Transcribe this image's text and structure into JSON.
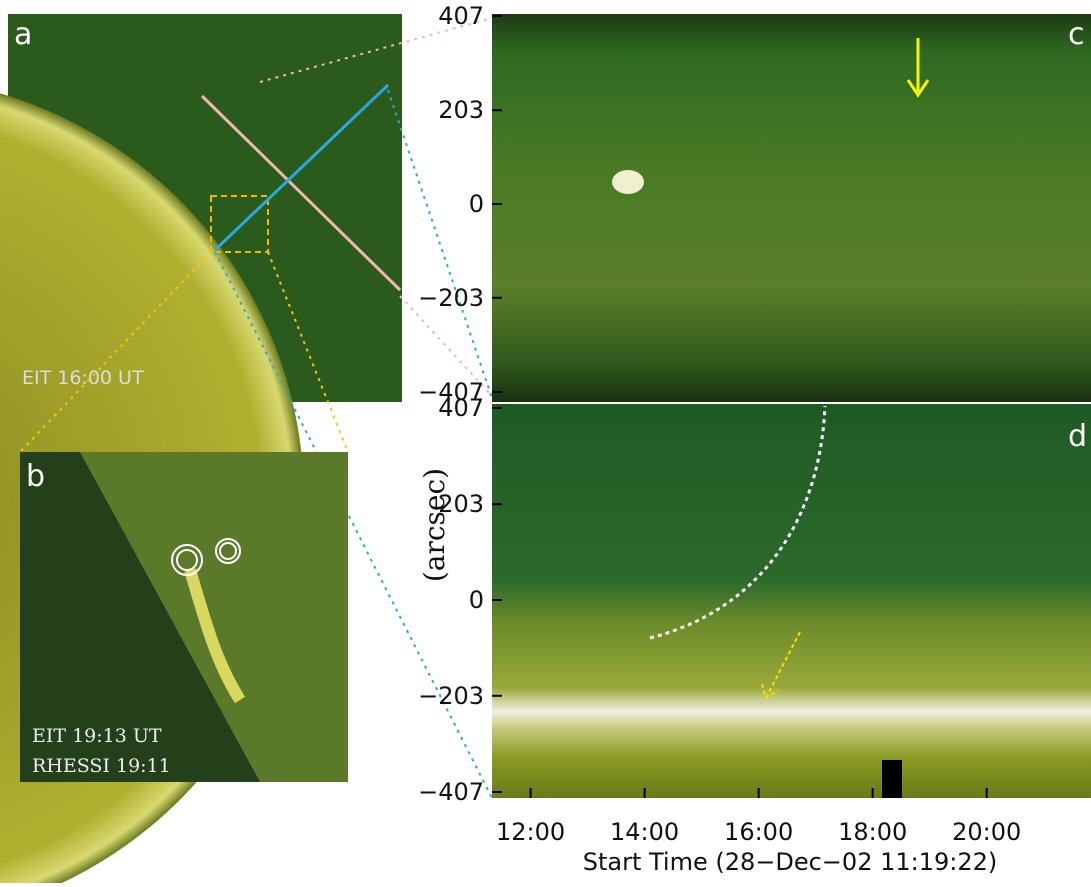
{
  "panels": {
    "a": {
      "label": "a",
      "caption": "EIT 16:00 UT"
    },
    "b": {
      "label": "b",
      "caption_1": "EIT 19:13 UT",
      "caption_2": "RHESSI 19:11"
    },
    "c": {
      "label": "c"
    },
    "d": {
      "label": "d"
    }
  },
  "axes": {
    "ylabel": "(arcsec)",
    "xlabel": "Start Time (28−Dec−02 11:19:22)",
    "ylim": [
      -407,
      407
    ],
    "yticks": [
      407,
      203,
      0,
      {
        "value": -203,
        "label": "−203"
      },
      {
        "value": -407,
        "label": "−407"
      }
    ],
    "xlim": [
      11.323,
      21.83
    ],
    "xticks": [
      {
        "value": 12,
        "label": "12:00"
      },
      {
        "value": 14,
        "label": "14:00"
      },
      {
        "value": 16,
        "label": "16:00"
      },
      {
        "value": 18,
        "label": "18:00"
      },
      {
        "value": 20,
        "label": "20:00"
      }
    ]
  }
}
